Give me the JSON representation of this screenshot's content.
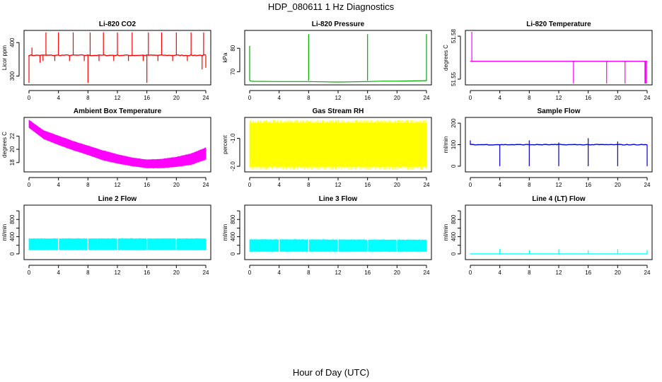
{
  "figure": {
    "title": "HDP_080611  1 Hz Diagnostics",
    "xlabel": "Hour of Day (UTC)"
  },
  "chart_data": [
    {
      "type": "line",
      "title": "Li-820 CO2",
      "ylabel": "Licor ppm",
      "color": "#ff0000",
      "xlim": [
        0,
        24
      ],
      "xticks": [
        0,
        4,
        8,
        12,
        16,
        20,
        24
      ],
      "ylim": [
        278,
        432
      ],
      "yticks": [
        300,
        400
      ],
      "ytick_labels": [
        "300",
        "400"
      ],
      "baseline": 362,
      "noise": 3,
      "spikes": [
        [
          0,
          280
        ],
        [
          0.4,
          385
        ],
        [
          1.5,
          340
        ],
        [
          1.9,
          345
        ],
        [
          2.3,
          430
        ],
        [
          3.5,
          345
        ],
        [
          4,
          430
        ],
        [
          5.5,
          345
        ],
        [
          6,
          430
        ],
        [
          7.5,
          345
        ],
        [
          8,
          280
        ],
        [
          8.3,
          430
        ],
        [
          9.5,
          345
        ],
        [
          10.1,
          430
        ],
        [
          11.5,
          345
        ],
        [
          12,
          430
        ],
        [
          13.5,
          345
        ],
        [
          14,
          430
        ],
        [
          15.5,
          345
        ],
        [
          16,
          280
        ],
        [
          16.2,
          430
        ],
        [
          17.5,
          345
        ],
        [
          18,
          430
        ],
        [
          19.5,
          345
        ],
        [
          20,
          430
        ],
        [
          21.5,
          345
        ],
        [
          22,
          430
        ],
        [
          23.5,
          320
        ],
        [
          23.7,
          430
        ],
        [
          24,
          325
        ]
      ]
    },
    {
      "type": "line",
      "title": "Li-820 Pressure",
      "ylabel": "kPa",
      "color": "#00aa00",
      "xlim": [
        0,
        24
      ],
      "xticks": [
        0,
        4,
        8,
        12,
        16,
        20,
        24
      ],
      "ylim": [
        65,
        87
      ],
      "yticks": [
        70,
        80
      ],
      "ytick_labels": [
        "70",
        "80"
      ],
      "x": [
        0,
        0.2,
        0.5,
        4,
        8,
        10,
        12,
        14,
        16,
        18,
        20,
        22,
        24
      ],
      "values": [
        66.2,
        66.0,
        65.9,
        65.8,
        65.8,
        65.7,
        65.6,
        65.7,
        65.8,
        66.0,
        66.0,
        66.1,
        66.2
      ],
      "spikes": [
        [
          0,
          81
        ],
        [
          8,
          86
        ],
        [
          16,
          86
        ],
        [
          24,
          86
        ]
      ]
    },
    {
      "type": "line",
      "title": "Li-820 Temperature",
      "ylabel": "degrees C",
      "color": "#ff00ff",
      "xlim": [
        0,
        24
      ],
      "xticks": [
        0,
        4,
        8,
        12,
        16,
        20,
        24
      ],
      "ylim": [
        51.547,
        51.583
      ],
      "yticks": [
        51.55,
        51.58
      ],
      "ytick_labels": [
        "51.55",
        "51.58"
      ],
      "baseline": 51.5625,
      "spikes": [
        [
          0.2,
          51.583
        ],
        [
          14,
          51.547
        ],
        [
          18.5,
          51.547
        ],
        [
          21,
          51.547
        ],
        [
          23.7,
          51.547
        ],
        [
          23.8,
          51.547
        ],
        [
          23.9,
          51.547
        ]
      ]
    },
    {
      "type": "band",
      "title": "Ambient Box Temperature",
      "ylabel": "degrees C",
      "color": "#ff00ff",
      "xlim": [
        0,
        24
      ],
      "xticks": [
        0,
        4,
        8,
        12,
        16,
        20,
        24
      ],
      "ylim": [
        16.8,
        24.6
      ],
      "yticks": [
        18,
        20,
        22
      ],
      "ytick_labels": [
        "18",
        "20",
        "22"
      ],
      "x": [
        0,
        2,
        4,
        6,
        8,
        10,
        12,
        14,
        16,
        18,
        20,
        22,
        24
      ],
      "upper": [
        24.4,
        22.8,
        22.0,
        21.2,
        20.5,
        19.8,
        19.2,
        18.7,
        18.4,
        18.5,
        18.8,
        19.3,
        20.2
      ],
      "lower": [
        23.3,
        21.6,
        20.7,
        19.9,
        19.2,
        18.4,
        17.9,
        17.5,
        17.2,
        17.2,
        17.4,
        17.7,
        18.5
      ]
    },
    {
      "type": "band",
      "title": "Gas Stream RH",
      "ylabel": "percent",
      "color": "#ffff00",
      "xlim": [
        0,
        24
      ],
      "xticks": [
        0,
        4,
        8,
        12,
        16,
        20,
        24
      ],
      "ylim": [
        -2.15,
        -0.3
      ],
      "yticks": [
        -2.0,
        -1.0
      ],
      "ytick_labels": [
        "-2.0",
        "-1.0"
      ],
      "x": [
        0,
        24
      ],
      "upper": [
        -0.45,
        -0.45
      ],
      "lower": [
        -2.0,
        -2.0
      ]
    },
    {
      "type": "line",
      "title": "Sample Flow",
      "ylabel": "ml/min",
      "color": "#0000cc",
      "xlim": [
        0,
        24
      ],
      "xticks": [
        0,
        4,
        8,
        12,
        16,
        20,
        24
      ],
      "ylim": [
        -20,
        220
      ],
      "yticks": [
        0,
        100,
        200
      ],
      "ytick_labels": [
        "0",
        "100",
        "200"
      ],
      "baseline": 100,
      "noise": 3,
      "spikes": [
        [
          0,
          120
        ],
        [
          4,
          0
        ],
        [
          8,
          0
        ],
        [
          8,
          120
        ],
        [
          12,
          0
        ],
        [
          12,
          110
        ],
        [
          16,
          0
        ],
        [
          16,
          130
        ],
        [
          20,
          0
        ],
        [
          20,
          115
        ],
        [
          24,
          0
        ]
      ]
    },
    {
      "type": "band",
      "title": "Line 2 Flow",
      "ylabel": "ml/min",
      "color": "#00ffff",
      "xlim": [
        0,
        24
      ],
      "xticks": [
        0,
        4,
        8,
        12,
        16,
        20,
        24
      ],
      "ylim": [
        -100,
        1100
      ],
      "yticks": [
        0,
        200,
        400,
        600,
        800,
        1000
      ],
      "ytick_labels": [
        "0",
        "400",
        "800"
      ],
      "x": [
        0,
        24
      ],
      "upper": [
        350,
        350
      ],
      "lower": [
        100,
        100
      ],
      "gaps": [
        4,
        8,
        12,
        16,
        20
      ]
    },
    {
      "type": "band",
      "title": "Line 3 Flow",
      "ylabel": "ml/min",
      "color": "#00ffff",
      "xlim": [
        0,
        24
      ],
      "xticks": [
        0,
        4,
        8,
        12,
        16,
        20,
        24
      ],
      "ylim": [
        -100,
        1100
      ],
      "yticks": [
        0,
        200,
        400,
        600,
        800,
        1000
      ],
      "ytick_labels": [
        "0",
        "400",
        "800"
      ],
      "x": [
        0,
        24
      ],
      "upper": [
        330,
        320
      ],
      "lower": [
        60,
        60
      ],
      "gaps": [
        4,
        8,
        12,
        16,
        20
      ]
    },
    {
      "type": "line",
      "title": "Line 4 (LT) Flow",
      "ylabel": "ml/min",
      "color": "#00ffff",
      "xlim": [
        0,
        24
      ],
      "xticks": [
        0,
        4,
        8,
        12,
        16,
        20,
        24
      ],
      "ylim": [
        -100,
        1100
      ],
      "yticks": [
        0,
        200,
        400,
        600,
        800,
        1000
      ],
      "ytick_labels": [
        "0",
        "400",
        "800"
      ],
      "baseline": 0,
      "spikes": [
        [
          4,
          120
        ],
        [
          8,
          90
        ],
        [
          12,
          110
        ],
        [
          16,
          90
        ],
        [
          20,
          110
        ],
        [
          24,
          90
        ]
      ]
    }
  ]
}
